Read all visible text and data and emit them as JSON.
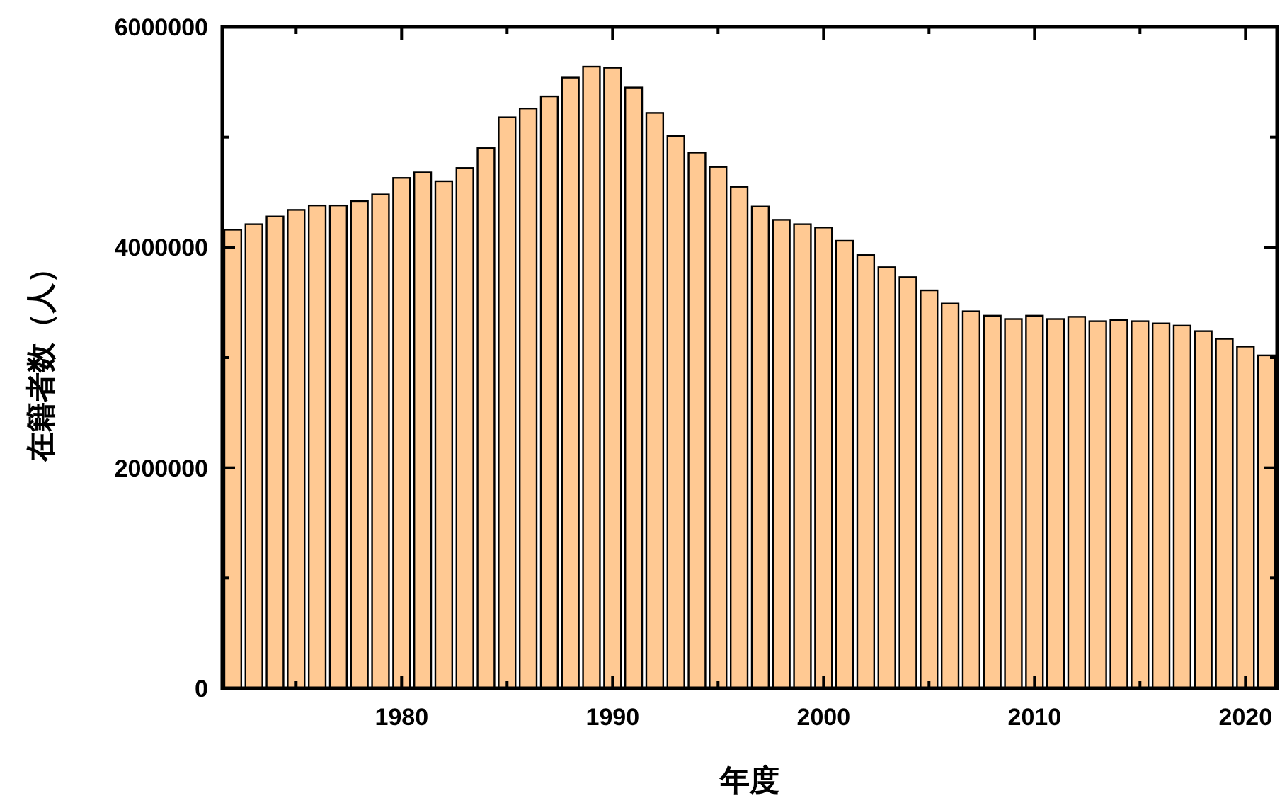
{
  "chart_data": {
    "type": "bar",
    "xlabel": "年度",
    "ylabel": "在籍者数（人）",
    "x": [
      1972,
      1973,
      1974,
      1975,
      1976,
      1977,
      1978,
      1979,
      1980,
      1981,
      1982,
      1983,
      1984,
      1985,
      1986,
      1987,
      1988,
      1989,
      1990,
      1991,
      1992,
      1993,
      1994,
      1995,
      1996,
      1997,
      1998,
      1999,
      2000,
      2001,
      2002,
      2003,
      2004,
      2005,
      2006,
      2007,
      2008,
      2009,
      2010,
      2011,
      2012,
      2013,
      2014,
      2015,
      2016,
      2017,
      2018,
      2019,
      2020,
      2021
    ],
    "values": [
      4160000,
      4210000,
      4280000,
      4340000,
      4380000,
      4380000,
      4420000,
      4480000,
      4630000,
      4680000,
      4600000,
      4720000,
      4900000,
      5180000,
      5260000,
      5370000,
      5540000,
      5640000,
      5630000,
      5450000,
      5220000,
      5010000,
      4860000,
      4730000,
      4550000,
      4370000,
      4250000,
      4210000,
      4180000,
      4060000,
      3930000,
      3820000,
      3730000,
      3610000,
      3490000,
      3420000,
      3380000,
      3350000,
      3380000,
      3350000,
      3370000,
      3330000,
      3340000,
      3330000,
      3310000,
      3290000,
      3240000,
      3170000,
      3100000,
      3020000
    ],
    "color": "#ffc993",
    "xlim": [
      1971.5,
      2021.5
    ],
    "xticks": [
      {
        "value": 1975,
        "label": null
      },
      1980,
      {
        "value": 1985,
        "label": null
      },
      1990,
      {
        "value": 1995,
        "label": null
      },
      2000,
      {
        "value": 2005,
        "label": null
      },
      2010,
      {
        "value": 2015,
        "label": null
      },
      2020
    ],
    "ylim": [
      0,
      6000000
    ],
    "yticks": [
      0,
      {
        "value": 1000000,
        "label": null
      },
      2000000,
      {
        "value": 3000000,
        "label": null
      },
      4000000,
      {
        "value": 5000000,
        "label": null
      },
      6000000
    ]
  }
}
